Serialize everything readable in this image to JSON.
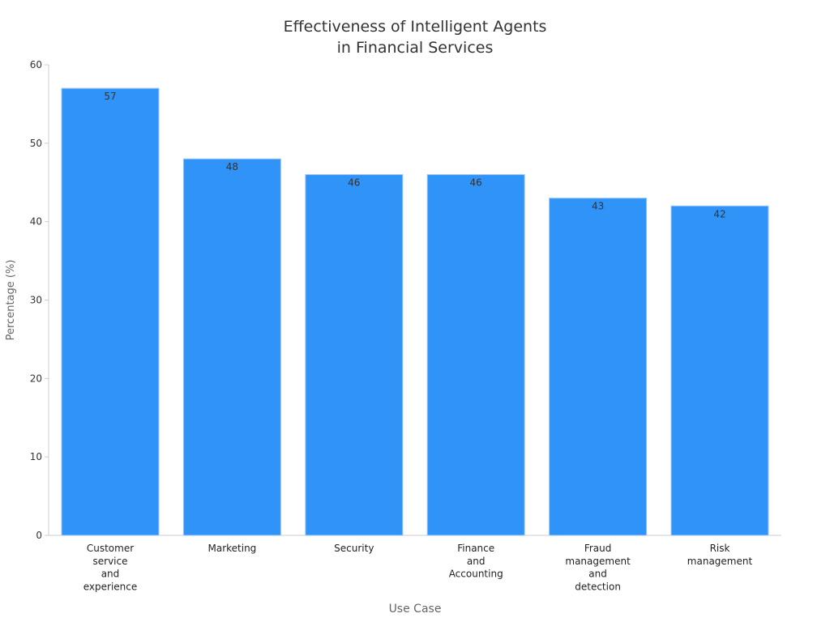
{
  "chart_data": {
    "type": "bar",
    "title_lines": [
      "Effectiveness of Intelligent Agents",
      "in Financial Services"
    ],
    "xlabel": "Use Case",
    "ylabel": "Percentage (%)",
    "ylim": [
      0,
      60
    ],
    "yticks": [
      0,
      10,
      20,
      30,
      40,
      50,
      60
    ],
    "grid": false,
    "legend": "none",
    "bar_color": "#3093f8",
    "categories": [
      [
        "Customer",
        "service",
        "and",
        "experience"
      ],
      [
        "Marketing"
      ],
      [
        "Security"
      ],
      [
        "Finance",
        "and",
        "Accounting"
      ],
      [
        "Fraud",
        "management",
        "and",
        "detection"
      ],
      [
        "Risk",
        "management"
      ]
    ],
    "values": [
      57,
      48,
      46,
      46,
      43,
      42
    ],
    "data_labels": [
      "57",
      "48",
      "46",
      "46",
      "43",
      "42"
    ]
  }
}
